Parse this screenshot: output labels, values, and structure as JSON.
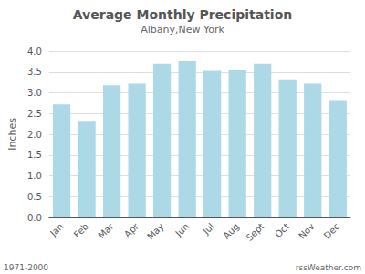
{
  "chart_data": {
    "type": "bar",
    "title": "Average Monthly Precipitation",
    "subtitle": "Albany,New York",
    "ylabel": "Inches",
    "annotations": [
      "1971-2000",
      "rssWeather.com"
    ],
    "categories": [
      "Jan",
      "Feb",
      "Mar",
      "Apr",
      "May",
      "Jun",
      "Jul",
      "Aug",
      "Sept",
      "Oct",
      "Nov",
      "Dec"
    ],
    "values": [
      2.72,
      2.3,
      3.18,
      3.22,
      3.7,
      3.76,
      3.53,
      3.54,
      3.7,
      3.3,
      3.22,
      2.8
    ],
    "color": "#add8e6",
    "ylim": [
      0.0,
      4.0
    ],
    "yticks": [
      {
        "value": 0,
        "label": "0.0"
      },
      0.5,
      {
        "value": 1,
        "label": "1.0"
      },
      1.5,
      {
        "value": 2,
        "label": "2.0"
      },
      2.5,
      {
        "value": 3,
        "label": "3.0"
      },
      3.5,
      {
        "value": 4,
        "label": "4.0"
      }
    ],
    "grid": true
  }
}
